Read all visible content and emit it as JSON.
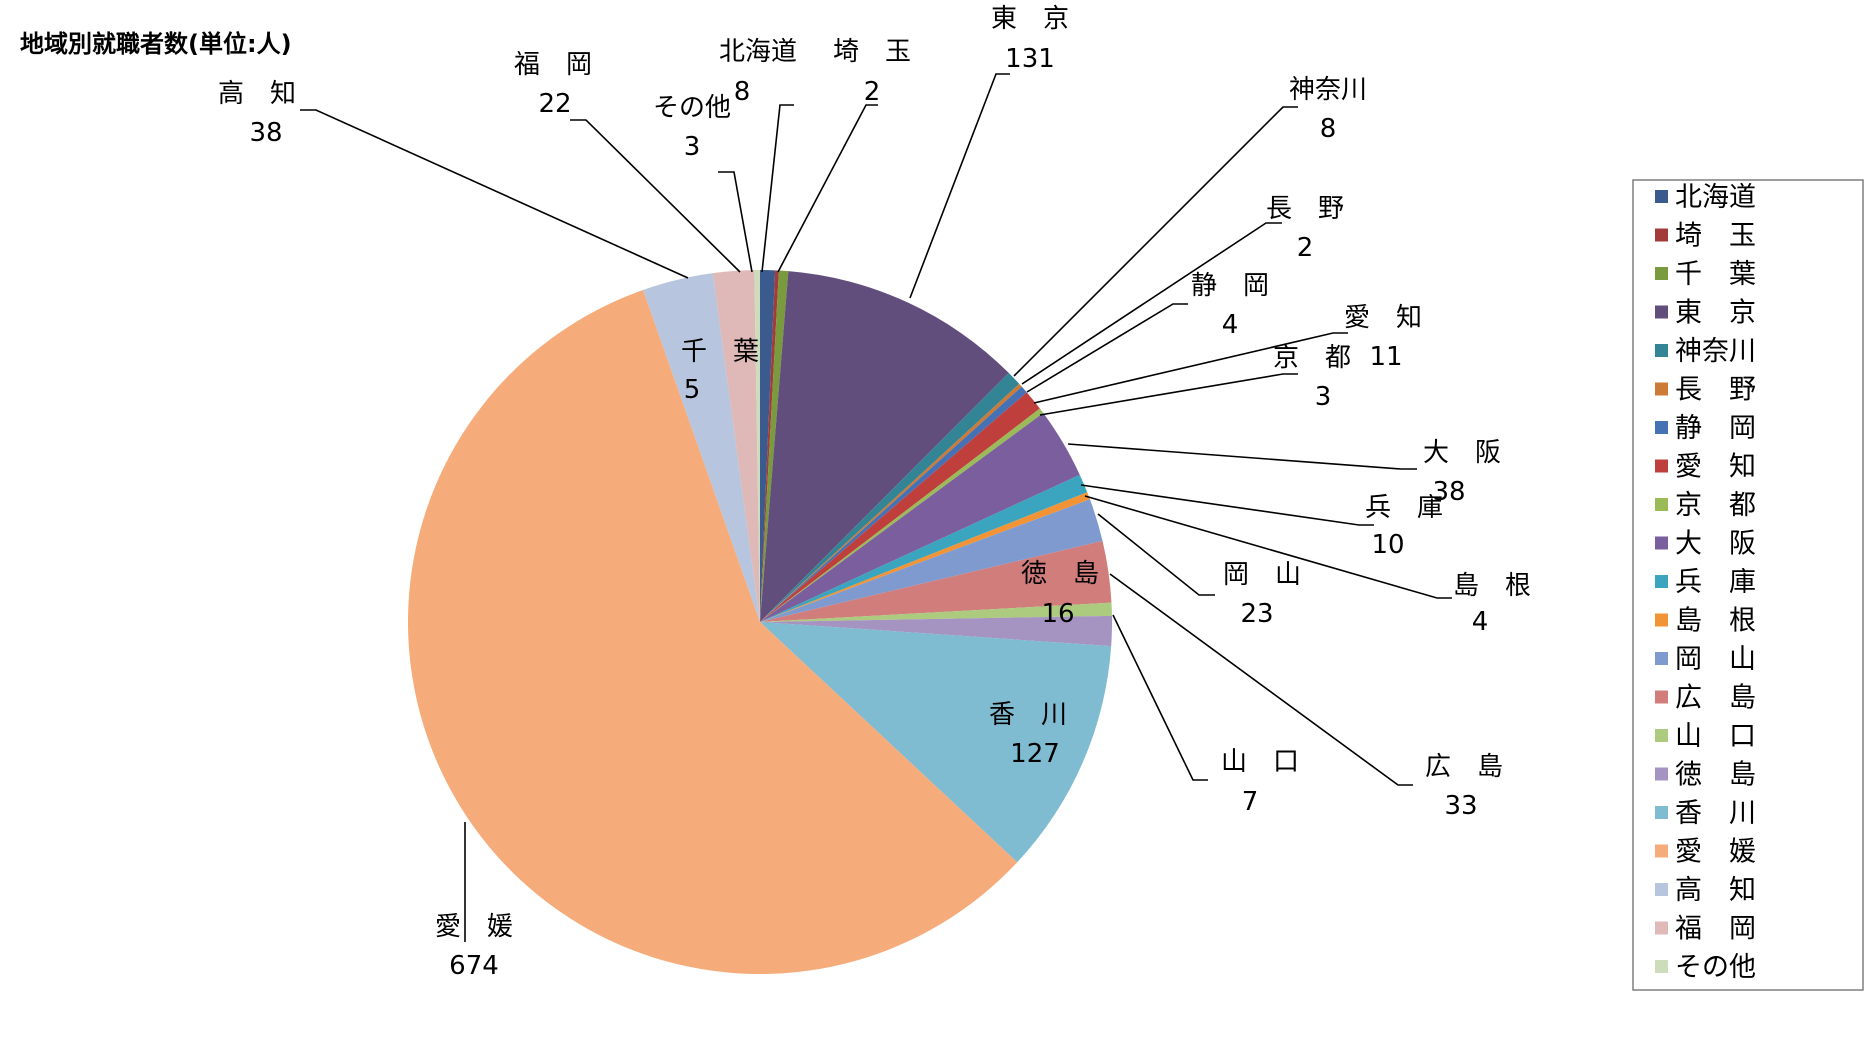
{
  "chart_data": {
    "type": "pie",
    "title": "地域別就職者数(単位:人)",
    "legend_position": "right",
    "slices": [
      {
        "name": "北海道",
        "legend": "北海道",
        "value": 8,
        "color": "#3B5B8E",
        "label_name": "北海道",
        "label_value": "8"
      },
      {
        "name": "埼 玉",
        "legend": "埼　玉",
        "value": 2,
        "color": "#A33B3B",
        "label_name": "埼　玉",
        "label_value": "2"
      },
      {
        "name": "千 葉",
        "legend": "千　葉",
        "value": 5,
        "color": "#7A9A3E",
        "label_name": "千　葉",
        "label_value": "5"
      },
      {
        "name": "東 京",
        "legend": "東　京",
        "value": 131,
        "color": "#624E7D",
        "label_name": "東　京",
        "label_value": "131"
      },
      {
        "name": "神奈川",
        "legend": "神奈川",
        "value": 8,
        "color": "#338495",
        "label_name": "神奈川",
        "label_value": "8"
      },
      {
        "name": "長 野",
        "legend": "長　野",
        "value": 2,
        "color": "#CC7A36",
        "label_name": "長　野",
        "label_value": "2"
      },
      {
        "name": "静 岡",
        "legend": "静　岡",
        "value": 4,
        "color": "#4472B4",
        "label_name": "静　岡",
        "label_value": "4"
      },
      {
        "name": "愛 知",
        "legend": "愛　知",
        "value": 11,
        "color": "#BF3F3C",
        "label_name": "愛　知",
        "label_value": "11"
      },
      {
        "name": "京 都",
        "legend": "京　都",
        "value": 3,
        "color": "#9BBB59",
        "label_name": "京　都",
        "label_value": "3"
      },
      {
        "name": "大 阪",
        "legend": "大　阪",
        "value": 38,
        "color": "#7A5E9E",
        "label_name": "大　阪",
        "label_value": "38"
      },
      {
        "name": "兵 庫",
        "legend": "兵　庫",
        "value": 10,
        "color": "#3BA4BE",
        "label_name": "兵　庫",
        "label_value": "10"
      },
      {
        "name": "島 根",
        "legend": "島　根",
        "value": 4,
        "color": "#F29436",
        "label_name": "島　根",
        "label_value": "4"
      },
      {
        "name": "岡 山",
        "legend": "岡　山",
        "value": 23,
        "color": "#7F9ACF",
        "label_name": "岡　山",
        "label_value": "23"
      },
      {
        "name": "広 島",
        "legend": "広　島",
        "value": 33,
        "color": "#D07D7B",
        "label_name": "広　島",
        "label_value": "33"
      },
      {
        "name": "山 口",
        "legend": "山　口",
        "value": 7,
        "color": "#ADCB7E",
        "label_name": "山　口",
        "label_value": "7"
      },
      {
        "name": "徳 島",
        "legend": "徳　島",
        "value": 16,
        "color": "#A594C1",
        "label_name": "徳　島",
        "label_value": "16"
      },
      {
        "name": "香 川",
        "legend": "香　川",
        "value": 127,
        "color": "#7FBBD1",
        "label_name": "香　川",
        "label_value": "127"
      },
      {
        "name": "愛 媛",
        "legend": "愛　媛",
        "value": 674,
        "color": "#F6AB7A",
        "label_name": "愛　媛",
        "label_value": "674"
      },
      {
        "name": "高 知",
        "legend": "高　知",
        "value": 38,
        "color": "#B8C5DE",
        "label_name": "高　知",
        "label_value": "38"
      },
      {
        "name": "福 岡",
        "legend": "福　岡",
        "value": 22,
        "color": "#DFB8B8",
        "label_name": "福　岡",
        "label_value": "22"
      },
      {
        "name": "その他",
        "legend": "その他",
        "value": 3,
        "color": "#CDDDBB",
        "label_name": "その他",
        "label_value": "3"
      }
    ]
  }
}
